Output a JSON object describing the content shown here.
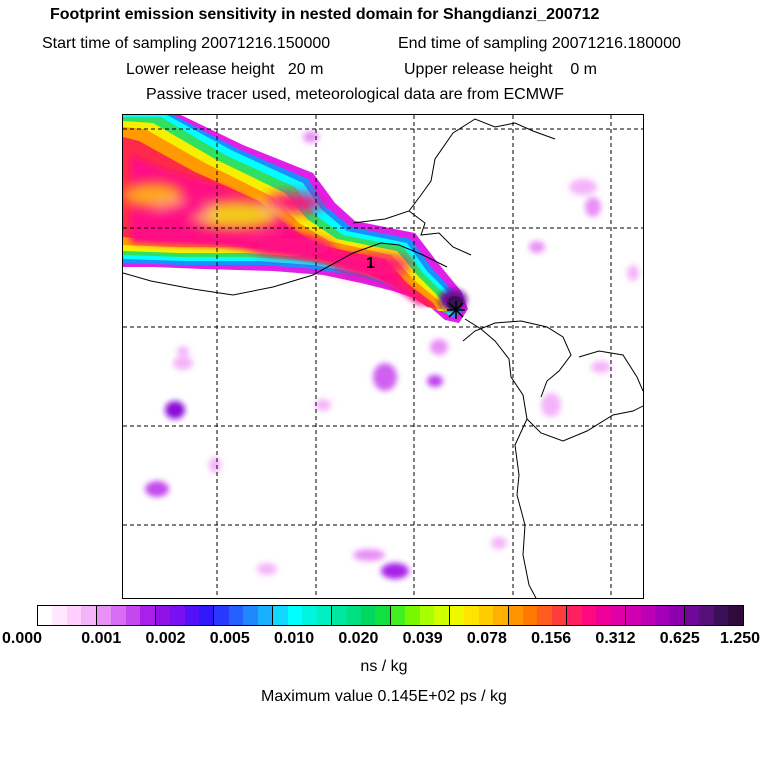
{
  "chart_data": {
    "type": "heatmap",
    "title": "Footprint emission sensitivity in nested domain for Shangdianzi_200712",
    "info": {
      "start": "Start time of sampling 20071216.150000",
      "end": "End time of sampling 20071216.180000",
      "lower": "Lower release height   20 m",
      "upper": "Upper release height    0 m",
      "tracer": "Passive tracer used, meteorological data are from ECMWF"
    },
    "receptor_label": "1",
    "colorbar": {
      "tick_labels": [
        "0.000",
        "0.001",
        "0.002",
        "0.005",
        "0.010",
        "0.020",
        "0.039",
        "0.078",
        "0.156",
        "0.312",
        "0.625",
        "1.250"
      ],
      "unit": "ns / kg",
      "colors": [
        "#ffffff",
        "#ffe8ff",
        "#ffd0ff",
        "#f4b4fa",
        "#e890f6",
        "#d86cf2",
        "#c448ee",
        "#a820ea",
        "#9012e6",
        "#7a10f2",
        "#5410f6",
        "#3018fa",
        "#2838ff",
        "#2460ff",
        "#2088ff",
        "#18b0ff",
        "#10d8ff",
        "#00ffff",
        "#00f4e0",
        "#00eec0",
        "#00e8a0",
        "#00e080",
        "#00d860",
        "#10e040",
        "#40f020",
        "#78f800",
        "#a8ff00",
        "#d0ff00",
        "#f0f800",
        "#ffe400",
        "#ffcc00",
        "#ffb000",
        "#ff9400",
        "#ff7800",
        "#ff5c20",
        "#ff3c3c",
        "#ff2060",
        "#ff0880",
        "#f0009a",
        "#e000a8",
        "#d000b2",
        "#bc00b8",
        "#a400ba",
        "#8c00b0",
        "#700898",
        "#561078",
        "#3c1058",
        "#300a3c"
      ]
    },
    "max_value": "Maximum value  0.145E+02 ps / kg"
  }
}
